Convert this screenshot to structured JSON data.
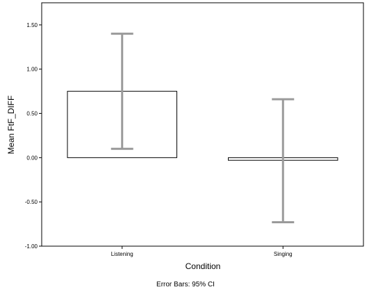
{
  "chart_data": {
    "type": "bar",
    "categories": [
      "Listening",
      "Singing"
    ],
    "values": [
      0.75,
      -0.03
    ],
    "error_bars": {
      "type": "95% CI",
      "lower": [
        0.1,
        -0.73
      ],
      "upper": [
        1.4,
        0.66
      ]
    },
    "xlabel": "Condition",
    "ylabel": "Mean FtF_DIFF",
    "ylim": [
      -1.0,
      1.75
    ],
    "yticks": [
      -1.0,
      -0.5,
      0.0,
      0.5,
      1.0,
      1.5
    ],
    "ytick_labels": [
      "-1.00",
      "-0.50",
      "0.00",
      "0.50",
      "1.00",
      "1.50"
    ],
    "footnote": "Error Bars: 95% CI",
    "grid": false,
    "colors": {
      "bar_fill": "#ffffff",
      "bar_stroke": "#000000",
      "error_bar": "#9a9a9a"
    }
  }
}
